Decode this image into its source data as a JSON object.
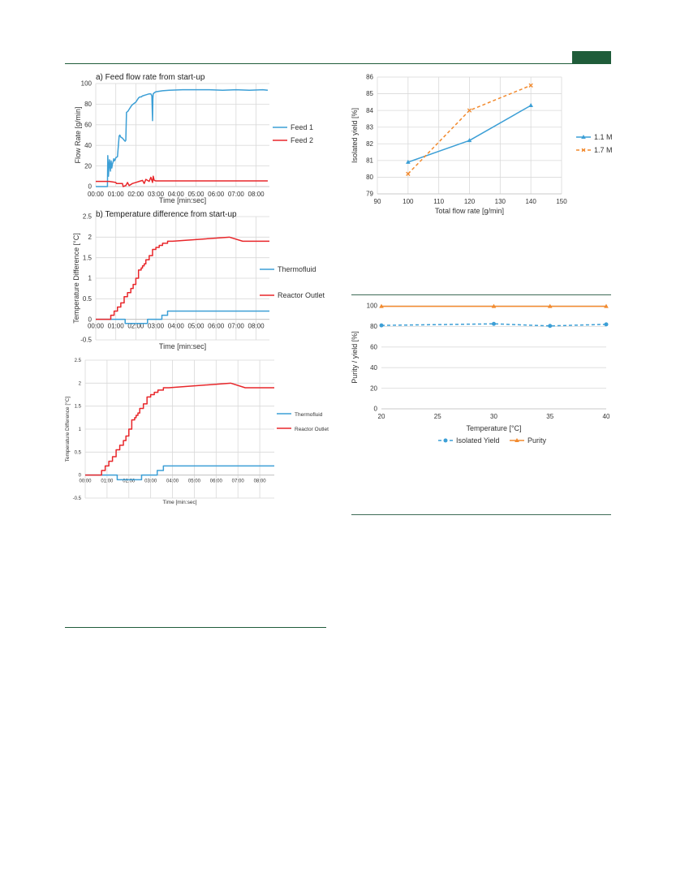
{
  "colors": {
    "blue": "#3c9fd6",
    "red": "#e8262a",
    "orange": "#f28a2e",
    "brand": "#1f5c3a"
  },
  "chart_data": [
    {
      "id": "flow",
      "type": "line",
      "title": "a) Feed flow rate from start-up",
      "xlabel": "Time [min:sec]",
      "ylabel": "Flow Rate [g/min]",
      "xlim": [
        0,
        520
      ],
      "ylim": [
        0,
        100
      ],
      "x_ticks": [
        0,
        60,
        120,
        180,
        240,
        300,
        360,
        420,
        480
      ],
      "x_tick_labels": [
        "00:00",
        "01:00",
        "02:00",
        "03:00",
        "04:00",
        "05:00",
        "06:00",
        "07:00",
        "08:00"
      ],
      "y_ticks": [
        0,
        20,
        40,
        60,
        80,
        100
      ],
      "y_tick_labels": [
        "0",
        "20",
        "40",
        "60",
        "80",
        "100"
      ],
      "legend": "right",
      "series": [
        {
          "name": "Feed 1",
          "color": "#3c9fd6",
          "x": [
            0,
            35,
            36,
            38,
            40,
            41,
            44,
            46,
            48,
            50,
            52,
            54,
            56,
            58,
            60,
            65,
            70,
            72,
            75,
            80,
            85,
            88,
            90,
            92,
            96,
            100,
            104,
            108,
            112,
            116,
            120,
            124,
            128,
            132,
            136,
            140,
            150,
            160,
            165,
            168,
            170,
            171,
            172,
            175,
            180,
            200,
            220,
            260,
            300,
            340,
            380,
            420,
            460,
            500,
            515
          ],
          "y": [
            0,
            0,
            30,
            10,
            22,
            26,
            15,
            25,
            18,
            22,
            24,
            27,
            25,
            26,
            28,
            29,
            49,
            50,
            48,
            47,
            45,
            44,
            45,
            72,
            73,
            75,
            77,
            79,
            80,
            81,
            82,
            84,
            86,
            87,
            87,
            88,
            89,
            90,
            90,
            88,
            64,
            85,
            90,
            91,
            92,
            93,
            93.5,
            94,
            94,
            94,
            93.5,
            94,
            93.5,
            94,
            93.5
          ]
        },
        {
          "name": "Feed 2",
          "color": "#e8262a",
          "x": [
            0,
            40,
            60,
            62,
            80,
            82,
            90,
            95,
            100,
            110,
            120,
            130,
            140,
            145,
            150,
            160,
            165,
            170,
            172,
            175,
            180,
            220,
            260,
            300,
            340,
            380,
            420,
            460,
            500,
            515
          ],
          "y": [
            5,
            5,
            4,
            3,
            3,
            0,
            1,
            4,
            1,
            3,
            4,
            5,
            6,
            3,
            7,
            5,
            9,
            4,
            10,
            6,
            5.5,
            5.5,
            5.5,
            5.5,
            5.5,
            5.5,
            5.5,
            5.5,
            5.5,
            5.5
          ]
        }
      ]
    },
    {
      "id": "temp",
      "type": "line",
      "title": "b) Temperature difference from start-up",
      "xlabel": "Time [min:sec]",
      "ylabel": "Temperature Difference [°C]",
      "xlim": [
        0,
        520
      ],
      "ylim": [
        -0.5,
        2.5
      ],
      "x_ticks": [
        0,
        60,
        120,
        180,
        240,
        300,
        360,
        420,
        480
      ],
      "x_tick_labels": [
        "00:00",
        "01:00",
        "02:00",
        "03:00",
        "04:00",
        "05:00",
        "06:00",
        "07:00",
        "08:00"
      ],
      "y_ticks": [
        -0.5,
        0,
        0.5,
        1,
        1.5,
        2,
        2.5
      ],
      "y_tick_labels": [
        "-0.5",
        "0",
        "0.5",
        "1",
        "1.5",
        "2",
        "2.5"
      ],
      "legend": "right",
      "series": [
        {
          "name": "Thermofluid",
          "color": "#3c9fd6",
          "x": [
            0,
            88,
            88,
            155,
            155,
            198,
            198,
            215,
            215,
            520
          ],
          "y": [
            0,
            0,
            -0.1,
            -0.1,
            0,
            0,
            0.1,
            0.1,
            0.2,
            0.2
          ]
        },
        {
          "name": "Reactor Outlet",
          "color": "#e8262a",
          "x": [
            0,
            45,
            45,
            55,
            55,
            65,
            65,
            75,
            75,
            85,
            85,
            95,
            95,
            105,
            105,
            112,
            112,
            120,
            120,
            128,
            128,
            136,
            136,
            140,
            140,
            145,
            145,
            150,
            150,
            160,
            160,
            170,
            170,
            180,
            180,
            190,
            190,
            200,
            200,
            215,
            215,
            230,
            230,
            400,
            400,
            440,
            440,
            520
          ],
          "y": [
            0,
            0,
            0.1,
            0.1,
            0.2,
            0.2,
            0.3,
            0.3,
            0.4,
            0.4,
            0.55,
            0.55,
            0.65,
            0.65,
            0.75,
            0.75,
            0.85,
            0.85,
            1.0,
            1.0,
            1.2,
            1.2,
            1.25,
            1.25,
            1.3,
            1.3,
            1.35,
            1.35,
            1.45,
            1.45,
            1.55,
            1.55,
            1.7,
            1.7,
            1.75,
            1.75,
            1.8,
            1.8,
            1.85,
            1.85,
            1.9,
            1.9,
            1.9,
            2.0,
            2.0,
            1.9,
            1.9,
            1.9
          ]
        }
      ]
    },
    {
      "id": "temp2",
      "type": "line",
      "title": "",
      "xlabel": "Time [min:sec]",
      "ylabel": "Temperature Difference [°C]",
      "xlim": [
        0,
        520
      ],
      "ylim": [
        -0.5,
        2.5
      ],
      "x_ticks": [
        0,
        60,
        120,
        180,
        240,
        300,
        360,
        420,
        480
      ],
      "x_tick_labels": [
        "00:00",
        "01:00",
        "02:00",
        "03:00",
        "04:00",
        "05:00",
        "06:00",
        "07:00",
        "08:00"
      ],
      "y_ticks": [
        -0.5,
        0,
        0.5,
        1,
        1.5,
        2,
        2.5
      ],
      "y_tick_labels": [
        "-0.5",
        "0",
        "0.5",
        "1",
        "1.5",
        "2",
        "2.5"
      ],
      "legend": "right",
      "series": [
        {
          "name": "Thermofluid",
          "color": "#3c9fd6",
          "x": [
            0,
            88,
            88,
            155,
            155,
            198,
            198,
            215,
            215,
            520
          ],
          "y": [
            0,
            0,
            -0.1,
            -0.1,
            0,
            0,
            0.1,
            0.1,
            0.2,
            0.2
          ]
        },
        {
          "name": "Reactor Outlet",
          "color": "#e8262a",
          "x": [
            0,
            45,
            45,
            55,
            55,
            65,
            65,
            75,
            75,
            85,
            85,
            95,
            95,
            105,
            105,
            112,
            112,
            120,
            120,
            128,
            128,
            136,
            136,
            140,
            140,
            145,
            145,
            150,
            150,
            160,
            160,
            170,
            170,
            180,
            180,
            190,
            190,
            200,
            200,
            215,
            215,
            230,
            230,
            400,
            400,
            440,
            440,
            520
          ],
          "y": [
            0,
            0,
            0.1,
            0.1,
            0.2,
            0.2,
            0.3,
            0.3,
            0.4,
            0.4,
            0.55,
            0.55,
            0.65,
            0.65,
            0.75,
            0.75,
            0.85,
            0.85,
            1.0,
            1.0,
            1.2,
            1.2,
            1.25,
            1.25,
            1.3,
            1.3,
            1.35,
            1.35,
            1.45,
            1.45,
            1.55,
            1.55,
            1.7,
            1.7,
            1.75,
            1.75,
            1.8,
            1.8,
            1.85,
            1.85,
            1.9,
            1.9,
            1.9,
            2.0,
            2.0,
            1.9,
            1.9,
            1.9
          ]
        }
      ]
    },
    {
      "id": "yield",
      "type": "line",
      "title": "",
      "xlabel": "Total flow rate [g/min]",
      "ylabel": "Isolated yield [%]",
      "xlim": [
        90,
        150
      ],
      "ylim": [
        79,
        86
      ],
      "x_ticks": [
        90,
        100,
        110,
        120,
        130,
        140,
        150
      ],
      "x_tick_labels": [
        "90",
        "100",
        "110",
        "120",
        "130",
        "140",
        "150"
      ],
      "y_ticks": [
        79,
        80,
        81,
        82,
        83,
        84,
        85,
        86
      ],
      "y_tick_labels": [
        "79",
        "80",
        "81",
        "82",
        "83",
        "84",
        "85",
        "86"
      ],
      "legend": "right",
      "series": [
        {
          "name": "1.1 M",
          "color": "#3c9fd6",
          "dash": "none",
          "marker": "triangle",
          "x": [
            100,
            120,
            140
          ],
          "y": [
            80.9,
            82.2,
            84.3
          ]
        },
        {
          "name": "1.7 M",
          "color": "#f28a2e",
          "dash": "4,3",
          "marker": "x",
          "x": [
            100,
            120,
            140
          ],
          "y": [
            80.2,
            84.0,
            85.5
          ]
        }
      ]
    },
    {
      "id": "purity",
      "type": "line",
      "title": "",
      "xlabel": "Temperature [°C]",
      "ylabel": "Purity / yield [%]",
      "xlim": [
        20,
        40
      ],
      "ylim": [
        0,
        100
      ],
      "x_ticks": [
        20,
        25,
        30,
        35,
        40
      ],
      "x_tick_labels": [
        "20",
        "25",
        "30",
        "35",
        "40"
      ],
      "y_ticks": [
        0,
        20,
        40,
        60,
        80,
        100
      ],
      "y_tick_labels": [
        "0",
        "20",
        "40",
        "60",
        "80",
        "100"
      ],
      "legend": "bottom",
      "series": [
        {
          "name": "Isolated Yield",
          "color": "#3c9fd6",
          "dash": "4,3",
          "marker": "circle",
          "x": [
            20,
            30,
            35,
            40
          ],
          "y": [
            81,
            82.5,
            80.5,
            82
          ]
        },
        {
          "name": "Purity",
          "color": "#f28a2e",
          "dash": "none",
          "marker": "triangle",
          "x": [
            20,
            30,
            35,
            40
          ],
          "y": [
            99.5,
            99.5,
            99.5,
            99.5
          ]
        }
      ]
    }
  ]
}
